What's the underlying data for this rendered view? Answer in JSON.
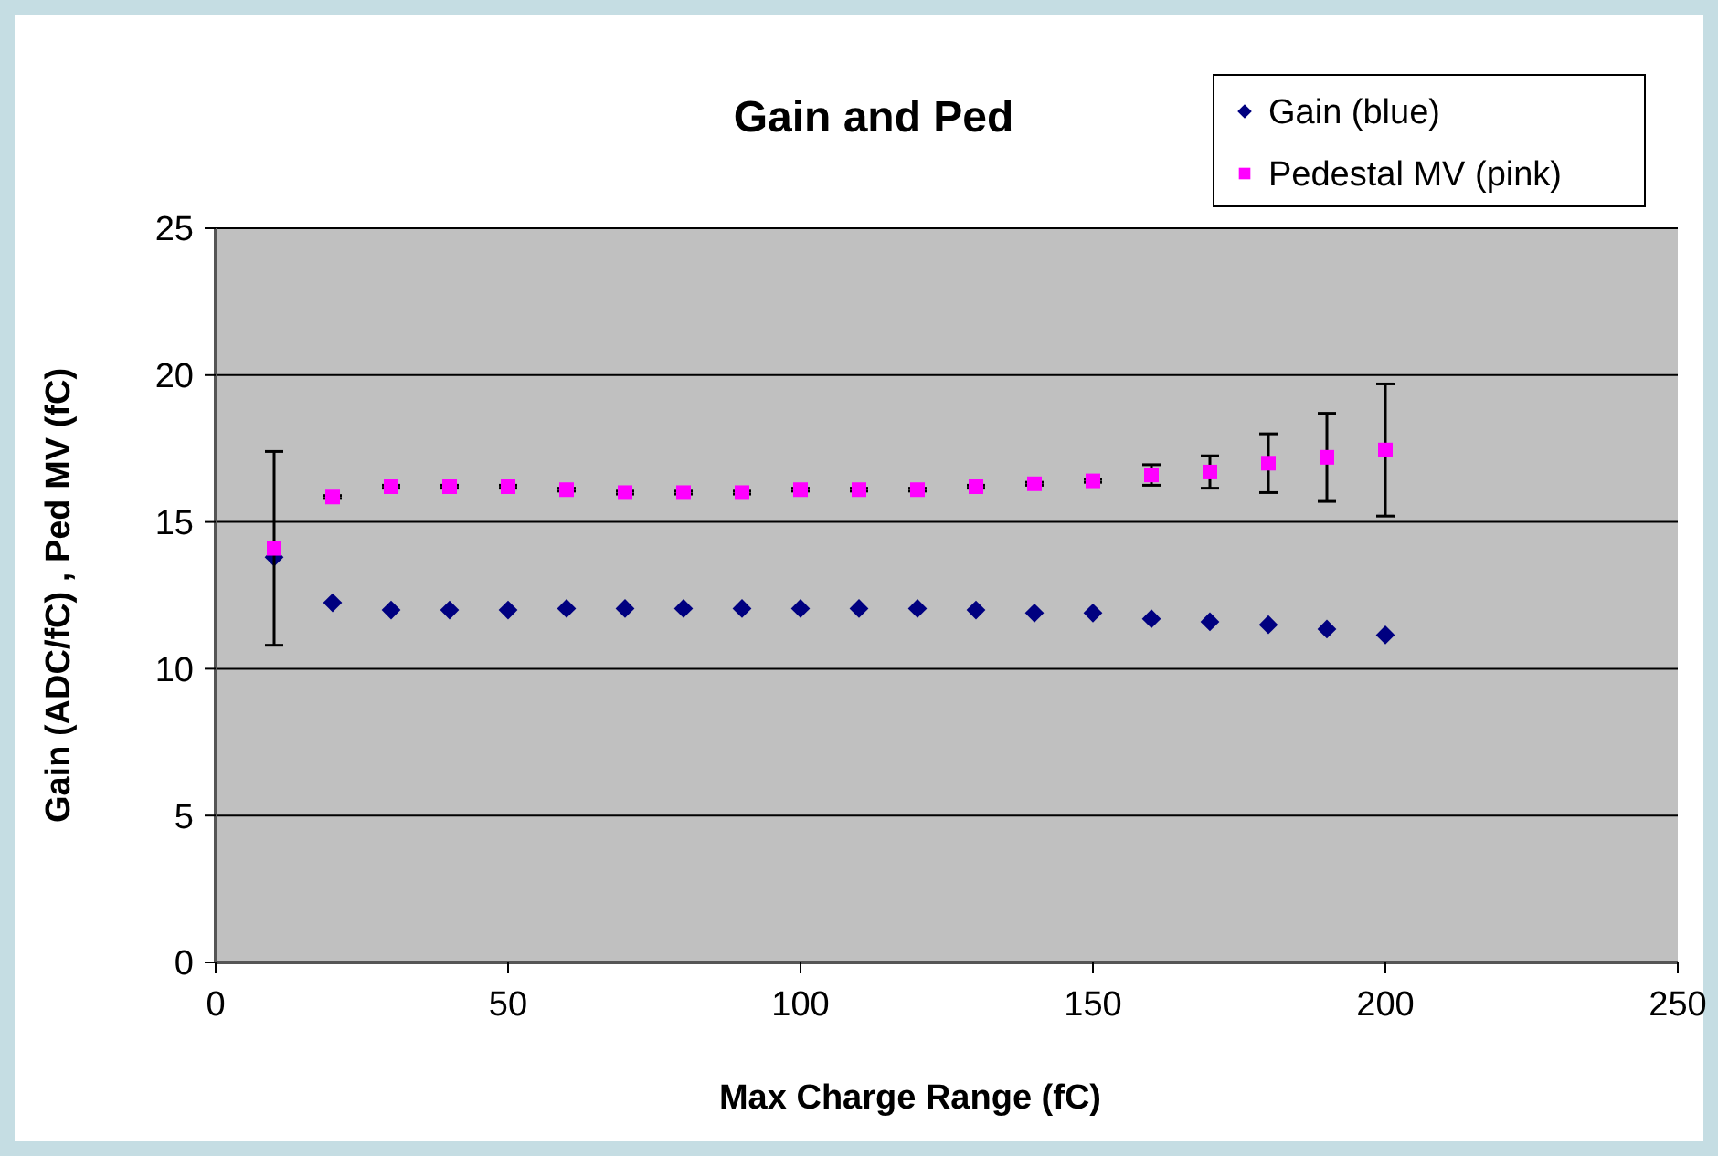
{
  "chart_data": {
    "type": "scatter",
    "title": "Gain and Ped",
    "xlabel": "Max Charge Range (fC)",
    "ylabel": "Gain (ADC/fC) , Ped MV (fC)",
    "x": [
      10,
      20,
      30,
      40,
      50,
      60,
      70,
      80,
      90,
      100,
      110,
      120,
      130,
      140,
      150,
      160,
      170,
      180,
      190,
      200
    ],
    "xlim": [
      0,
      250
    ],
    "xticks": [
      0,
      50,
      100,
      150,
      200,
      250
    ],
    "ylim": [
      0,
      25
    ],
    "yticks": [
      0,
      5,
      10,
      15,
      20,
      25
    ],
    "grid": "y",
    "legend": "top right",
    "series": [
      {
        "name": "Gain (blue)",
        "color": "#000080",
        "marker": "diamond",
        "values": [
          13.8,
          12.25,
          12.0,
          12.0,
          12.0,
          12.05,
          12.05,
          12.05,
          12.05,
          12.05,
          12.05,
          12.05,
          12.0,
          11.9,
          11.9,
          11.7,
          11.6,
          11.5,
          11.35,
          11.15
        ]
      },
      {
        "name": "Pedestal MV (pink)",
        "color": "#ff00ff",
        "marker": "square",
        "values": [
          14.1,
          15.85,
          16.2,
          16.2,
          16.2,
          16.1,
          16.0,
          16.0,
          16.0,
          16.1,
          16.1,
          16.1,
          16.2,
          16.3,
          16.4,
          16.6,
          16.7,
          17.0,
          17.2,
          17.45
        ],
        "errors": [
          3.3,
          0.05,
          0.05,
          0.05,
          0.05,
          0.05,
          0.05,
          0.05,
          0.05,
          0.05,
          0.05,
          0.05,
          0.05,
          0.05,
          0.05,
          0.35,
          0.55,
          1.0,
          1.5,
          2.25
        ]
      }
    ]
  }
}
